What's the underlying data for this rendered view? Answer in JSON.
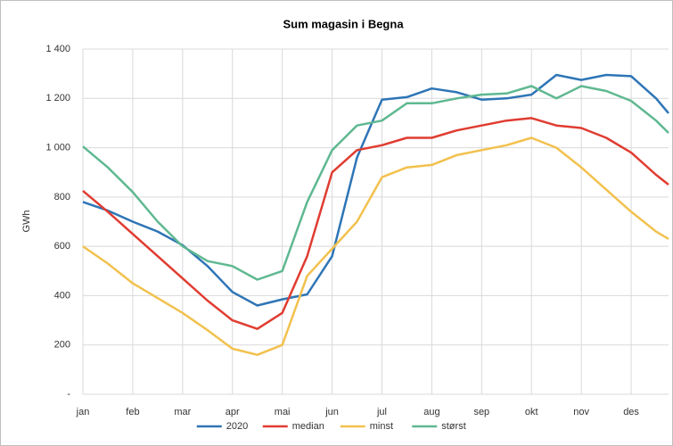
{
  "chart_data": {
    "type": "line",
    "title": "Sum magasin i Begna",
    "y_label": "GWh",
    "x": [
      0,
      0.5,
      1,
      1.5,
      2,
      2.5,
      3,
      3.5,
      4,
      4.5,
      5,
      5.5,
      6,
      6.5,
      7,
      7.5,
      8,
      8.5,
      9,
      9.5,
      10,
      10.5,
      11,
      11.5,
      11.75
    ],
    "xlim": [
      0,
      11.75
    ],
    "xticks": [
      {
        "value": 0,
        "label": "jan"
      },
      {
        "value": 1,
        "label": "feb"
      },
      {
        "value": 2,
        "label": "mar"
      },
      {
        "value": 3,
        "label": "apr"
      },
      {
        "value": 4,
        "label": "mai"
      },
      {
        "value": 5,
        "label": "jun"
      },
      {
        "value": 6,
        "label": "jul"
      },
      {
        "value": 7,
        "label": "aug"
      },
      {
        "value": 8,
        "label": "sep"
      },
      {
        "value": 9,
        "label": "okt"
      },
      {
        "value": 10,
        "label": "nov"
      },
      {
        "value": 11,
        "label": "des"
      }
    ],
    "ylim": [
      0,
      1400
    ],
    "yticks": [
      {
        "value": 0,
        "label": "-"
      },
      200,
      400,
      600,
      800,
      {
        "value": 1000,
        "label": "1 000"
      },
      {
        "value": 1200,
        "label": "1 200"
      },
      {
        "value": 1400,
        "label": "1 400"
      }
    ],
    "grid": true,
    "legend": "bottom",
    "series": [
      {
        "name": "2020",
        "color": "#2e75b6",
        "values": [
          780,
          745,
          700,
          660,
          605,
          520,
          415,
          360,
          385,
          405,
          560,
          960,
          1195,
          1205,
          1240,
          1225,
          1195,
          1200,
          1215,
          1295,
          1275,
          1295,
          1290,
          1200,
          1140
        ]
      },
      {
        "name": "median",
        "color": "#e03c31",
        "values": [
          825,
          740,
          650,
          560,
          470,
          380,
          300,
          265,
          330,
          560,
          900,
          990,
          1010,
          1040,
          1040,
          1070,
          1090,
          1110,
          1120,
          1090,
          1080,
          1040,
          980,
          890,
          850
        ]
      },
      {
        "name": "minst",
        "color": "#f2c14e",
        "values": [
          600,
          530,
          450,
          390,
          330,
          260,
          185,
          160,
          200,
          480,
          590,
          700,
          880,
          920,
          930,
          970,
          990,
          1010,
          1040,
          1000,
          920,
          830,
          740,
          660,
          630
        ]
      },
      {
        "name": "størst",
        "color": "#5fb891",
        "values": [
          1005,
          920,
          820,
          700,
          600,
          540,
          520,
          465,
          500,
          780,
          990,
          1090,
          1110,
          1180,
          1180,
          1200,
          1215,
          1220,
          1250,
          1200,
          1250,
          1230,
          1190,
          1110,
          1060
        ]
      }
    ]
  }
}
